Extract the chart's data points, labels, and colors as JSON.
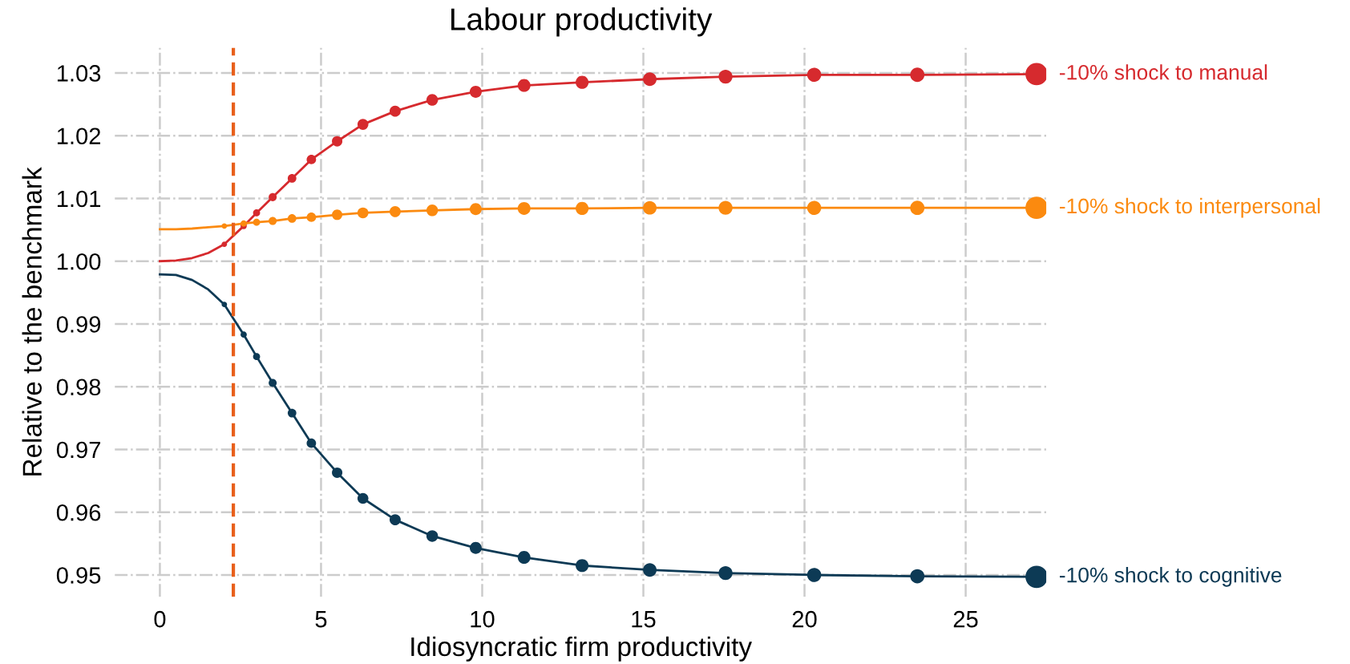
{
  "chart_data": {
    "type": "line",
    "title": "Labour productivity",
    "xlabel": "Idiosyncratic firm productivity",
    "ylabel": "Relative to the benchmark",
    "xlim": [
      -1.4,
      27.5
    ],
    "ylim": [
      0.9465,
      1.034
    ],
    "xticks": [
      0,
      5,
      10,
      15,
      20,
      25
    ],
    "yticks": [
      0.95,
      0.96,
      0.97,
      0.98,
      0.99,
      {
        "value": 1.0,
        "label": "1.00"
      },
      1.01,
      1.02,
      1.03
    ],
    "grid": true,
    "line_style": "solid",
    "marker": "none",
    "ref_lines": [
      {
        "axis": "x",
        "value": 2.28,
        "color": "#e8601c",
        "line_style": "dashed"
      }
    ],
    "series": [
      {
        "name": "-10% shock to manual",
        "color": "#d62a2e",
        "x": [
          0,
          0.5,
          1.0,
          1.5,
          2.0,
          2.6,
          3.0,
          3.5,
          4.1,
          4.7,
          5.5,
          6.3,
          7.3,
          8.45,
          9.8,
          11.3,
          13.1,
          15.2,
          17.55,
          20.3,
          23.5,
          27.2
        ],
        "values": [
          1.0,
          1.0001,
          1.0005,
          1.0013,
          1.0027,
          1.0056,
          1.0077,
          1.0102,
          1.0132,
          1.0162,
          1.0191,
          1.0218,
          1.0239,
          1.0257,
          1.027,
          1.028,
          1.0285,
          1.029,
          1.0294,
          1.0297,
          1.0297,
          1.0298
        ]
      },
      {
        "name": "-10% shock to interpersonal",
        "color": "#fb8a0f",
        "x": [
          0,
          0.5,
          1.0,
          1.5,
          2.0,
          2.6,
          3.0,
          3.5,
          4.1,
          4.7,
          5.5,
          6.3,
          7.3,
          8.45,
          9.8,
          11.3,
          13.1,
          15.2,
          17.55,
          20.3,
          23.5,
          27.2
        ],
        "values": [
          1.0051,
          1.0051,
          1.0052,
          1.0054,
          1.0056,
          1.006,
          1.0062,
          1.0064,
          1.0068,
          1.007,
          1.0074,
          1.0077,
          1.0079,
          1.0081,
          1.0083,
          1.0084,
          1.0084,
          1.0085,
          1.0085,
          1.0085,
          1.0085,
          1.0085
        ]
      },
      {
        "name": "-10% shock to cognitive",
        "color": "#0d3a55",
        "x": [
          0,
          0.5,
          1.0,
          1.5,
          2.0,
          2.6,
          3.0,
          3.5,
          4.1,
          4.7,
          5.5,
          6.3,
          7.3,
          8.45,
          9.8,
          11.3,
          13.1,
          15.2,
          17.55,
          20.3,
          23.5,
          27.2
        ],
        "values": [
          0.9979,
          0.9978,
          0.997,
          0.9955,
          0.9931,
          0.9883,
          0.9848,
          0.9806,
          0.9758,
          0.971,
          0.9663,
          0.9622,
          0.9588,
          0.9562,
          0.9543,
          0.9528,
          0.9515,
          0.9508,
          0.9503,
          0.95,
          0.9498,
          0.9497
        ]
      },
      {
        "type": "bubble",
        "color": "#d62a2e",
        "x": [
          2.0,
          2.6,
          3.0,
          3.5,
          4.1,
          4.7,
          5.5,
          6.3,
          7.3,
          8.45,
          9.8,
          11.3,
          13.1,
          15.2,
          17.55,
          20.3,
          23.5,
          27.2
        ],
        "values": [
          1.0027,
          1.0056,
          1.0077,
          1.0102,
          1.0132,
          1.0162,
          1.0191,
          1.0218,
          1.0239,
          1.0257,
          1.027,
          1.028,
          1.0285,
          1.029,
          1.0294,
          1.0297,
          1.0297,
          1.0298
        ],
        "sizes": [
          0.06,
          0.08,
          0.1,
          0.13,
          0.15,
          0.18,
          0.22,
          0.24,
          0.25,
          0.27,
          0.29,
          0.33,
          0.34,
          0.37,
          0.39,
          0.4,
          0.41,
          1.0
        ]
      },
      {
        "type": "bubble",
        "color": "#fb8a0f",
        "x": [
          2.0,
          2.6,
          3.0,
          3.5,
          4.1,
          4.7,
          5.5,
          6.3,
          7.3,
          8.45,
          9.8,
          11.3,
          13.1,
          15.2,
          17.55,
          20.3,
          23.5,
          27.2
        ],
        "values": [
          1.0056,
          1.006,
          1.0062,
          1.0064,
          1.0068,
          1.007,
          1.0074,
          1.0077,
          1.0079,
          1.0081,
          1.0083,
          1.0084,
          1.0084,
          1.0085,
          1.0085,
          1.0085,
          1.0085,
          1.0085
        ],
        "sizes": [
          0.06,
          0.08,
          0.1,
          0.13,
          0.15,
          0.18,
          0.22,
          0.24,
          0.25,
          0.27,
          0.29,
          0.33,
          0.34,
          0.37,
          0.39,
          0.4,
          0.41,
          1.0
        ]
      },
      {
        "type": "bubble",
        "color": "#0d3a55",
        "x": [
          2.0,
          2.6,
          3.0,
          3.5,
          4.1,
          4.7,
          5.5,
          6.3,
          7.3,
          8.45,
          9.8,
          11.3,
          13.1,
          15.2,
          17.55,
          20.3,
          23.5,
          27.2
        ],
        "values": [
          0.9931,
          0.9883,
          0.9848,
          0.9806,
          0.9758,
          0.971,
          0.9663,
          0.9622,
          0.9588,
          0.9562,
          0.9543,
          0.9528,
          0.9515,
          0.9508,
          0.9503,
          0.95,
          0.9498,
          0.9497
        ],
        "sizes": [
          0.06,
          0.08,
          0.1,
          0.13,
          0.15,
          0.18,
          0.22,
          0.24,
          0.25,
          0.27,
          0.29,
          0.33,
          0.34,
          0.37,
          0.39,
          0.4,
          0.41,
          1.0
        ]
      }
    ]
  }
}
